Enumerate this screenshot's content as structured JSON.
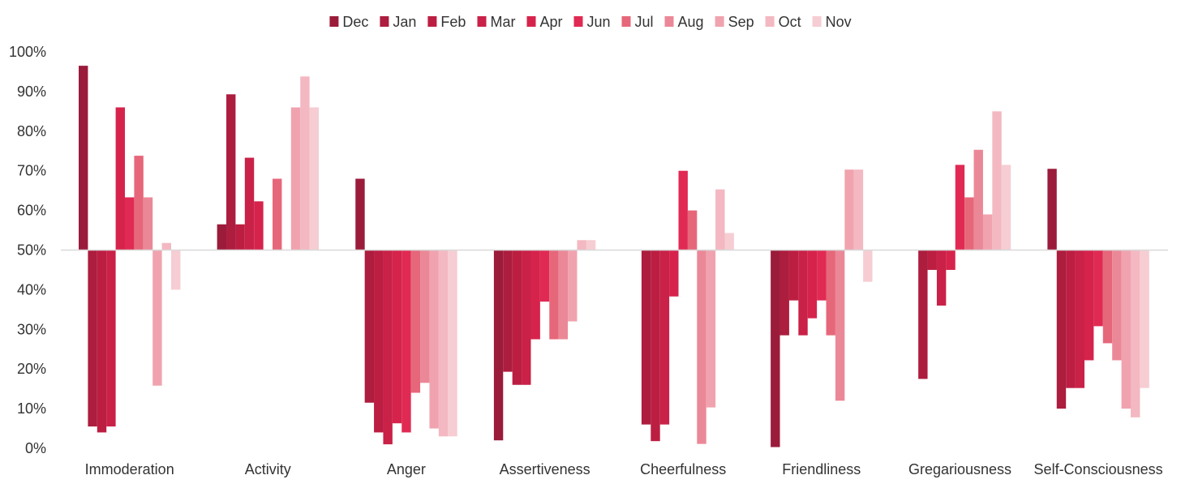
{
  "chart_data": {
    "type": "bar",
    "baseline": 50,
    "ylim": [
      0,
      100
    ],
    "y_ticks": [
      "0%",
      "10%",
      "20%",
      "30%",
      "40%",
      "50%",
      "60%",
      "70%",
      "80%",
      "90%",
      "100%"
    ],
    "grid": false,
    "legend_position": "top",
    "categories": [
      "Immoderation",
      "Activity",
      "Anger",
      "Assertiveness",
      "Cheerfulness",
      "Friendliness",
      "Gregariousness",
      "Self-Consciousness"
    ],
    "series": [
      {
        "name": "Dec",
        "color": "#9b1b3a",
        "values": [
          96.5,
          56.5,
          68,
          2,
          50,
          0.3,
          50,
          70.5
        ]
      },
      {
        "name": "Jan",
        "color": "#ac1d3e",
        "values": [
          5.5,
          89.3,
          11.5,
          19.3,
          6,
          28.5,
          17.5,
          10
        ]
      },
      {
        "name": "Feb",
        "color": "#bc1e42",
        "values": [
          4,
          56.5,
          4,
          16,
          1.8,
          37.3,
          45,
          15.2
        ]
      },
      {
        "name": "Mar",
        "color": "#c92147",
        "values": [
          5.5,
          73.3,
          1,
          16,
          6,
          28.5,
          36,
          15.2
        ]
      },
      {
        "name": "Apr",
        "color": "#d6234c",
        "values": [
          86,
          62.3,
          6.3,
          27.5,
          38.3,
          32.8,
          45,
          22.2
        ]
      },
      {
        "name": "Jun",
        "color": "#e02a53",
        "values": [
          63.3,
          50,
          4,
          37,
          70,
          37.3,
          71.5,
          30.8
        ]
      },
      {
        "name": "Jul",
        "color": "#e6677a",
        "values": [
          73.8,
          68,
          14,
          27.5,
          60,
          28.5,
          63.3,
          26.5
        ]
      },
      {
        "name": "Aug",
        "color": "#eb8897",
        "values": [
          63.3,
          50,
          16.5,
          27.5,
          1.1,
          12,
          75.3,
          22.2
        ]
      },
      {
        "name": "Sep",
        "color": "#f0a3ae",
        "values": [
          15.8,
          86,
          5,
          32,
          10.3,
          70.3,
          59,
          10
        ]
      },
      {
        "name": "Oct",
        "color": "#f3b8c1",
        "values": [
          51.8,
          93.8,
          3,
          52.5,
          65.3,
          70.3,
          85,
          7.8
        ]
      },
      {
        "name": "Nov",
        "color": "#f6cdd3",
        "values": [
          40,
          86,
          3,
          52.5,
          54.3,
          42,
          71.5,
          15.2
        ]
      }
    ]
  }
}
